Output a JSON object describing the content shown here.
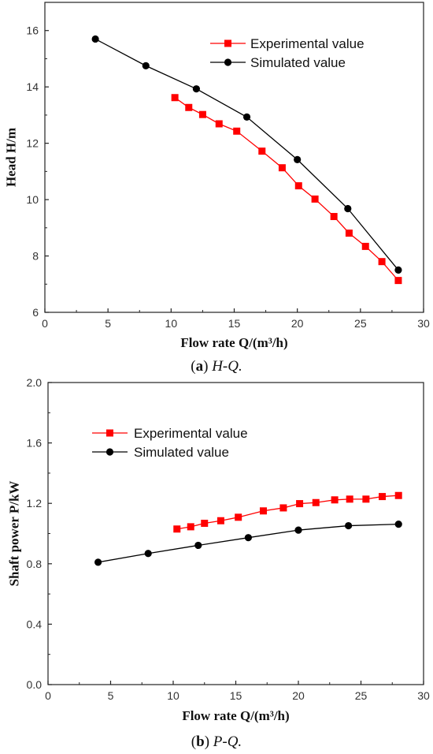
{
  "chart_data": [
    {
      "type": "line",
      "caption_letter": "a",
      "caption_text": "H-Q.",
      "xlabel": "Flow rate Q/(m³/h)",
      "ylabel": "Head H/m",
      "xlim": [
        0,
        30
      ],
      "ylim": [
        6,
        17
      ],
      "xticks": [
        "0",
        "5",
        "10",
        "15",
        "20",
        "25",
        "30"
      ],
      "yticks": [
        "6",
        "8",
        "10",
        "12",
        "14",
        "16"
      ],
      "grid": false,
      "legend_position": "top-right",
      "series": [
        {
          "name": "Experimental value",
          "color": "#ff0000",
          "marker": "square",
          "x": [
            10.3,
            11.4,
            12.5,
            13.8,
            15.2,
            17.2,
            18.8,
            20.1,
            21.4,
            22.9,
            24.1,
            25.4,
            26.7,
            28.0
          ],
          "y": [
            13.62,
            13.27,
            13.02,
            12.69,
            12.43,
            11.72,
            11.13,
            10.49,
            10.02,
            9.4,
            8.81,
            8.34,
            7.8,
            7.13
          ]
        },
        {
          "name": "Simulated value",
          "color": "#000000",
          "marker": "circle",
          "x": [
            4,
            8,
            12,
            16,
            20,
            24,
            28
          ],
          "y": [
            15.7,
            14.75,
            13.93,
            12.93,
            11.42,
            9.68,
            7.5
          ]
        }
      ]
    },
    {
      "type": "line",
      "caption_letter": "b",
      "caption_text": "P-Q.",
      "xlabel": "Flow rate Q/(m³/h)",
      "ylabel": "Shaft power P/kW",
      "xlim": [
        0,
        30
      ],
      "ylim": [
        0.0,
        2.0
      ],
      "xticks": [
        "0",
        "5",
        "10",
        "15",
        "20",
        "25",
        "30"
      ],
      "yticks": [
        "0.0",
        "0.4",
        "0.8",
        "1.2",
        "1.6",
        "2.0"
      ],
      "grid": false,
      "legend_position": "top-left",
      "series": [
        {
          "name": "Experimental value",
          "color": "#ff0000",
          "marker": "square",
          "x": [
            10.3,
            11.4,
            12.5,
            13.8,
            15.2,
            17.2,
            18.8,
            20.1,
            21.4,
            22.9,
            24.1,
            25.4,
            26.7,
            28.0
          ],
          "y": [
            1.03,
            1.045,
            1.068,
            1.085,
            1.108,
            1.15,
            1.17,
            1.198,
            1.205,
            1.223,
            1.228,
            1.228,
            1.245,
            1.252
          ]
        },
        {
          "name": "Simulated value",
          "color": "#000000",
          "marker": "circle",
          "x": [
            4,
            8,
            12,
            16,
            20,
            24,
            28
          ],
          "y": [
            0.81,
            0.868,
            0.922,
            0.973,
            1.023,
            1.052,
            1.062
          ]
        }
      ]
    }
  ]
}
